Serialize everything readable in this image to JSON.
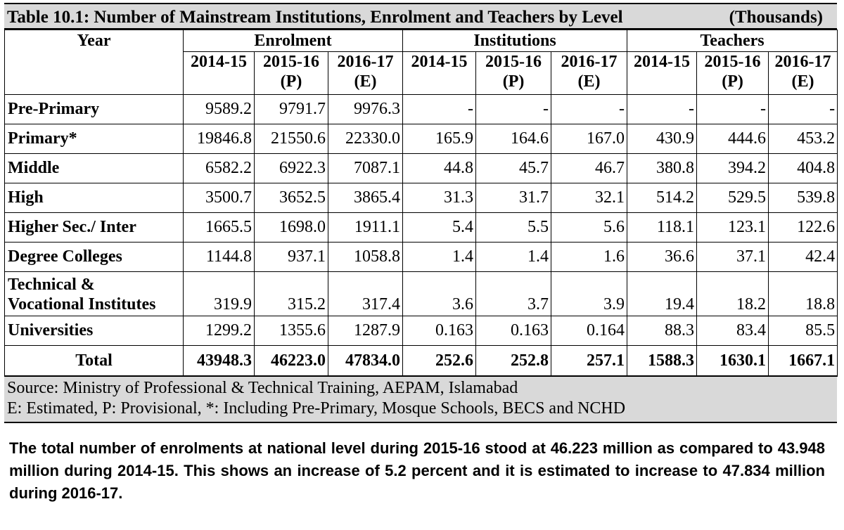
{
  "table": {
    "title": "Table 10.1: Number of Mainstream Institutions, Enrolment and Teachers by Level",
    "unit": "(Thousands)",
    "year_label": "Year",
    "groups": [
      "Enrolment",
      "Institutions",
      "Teachers"
    ],
    "subheaders": [
      {
        "line1": "2014-15",
        "line2": ""
      },
      {
        "line1": "2015-16",
        "line2": "(P)"
      },
      {
        "line1": "2016-17",
        "line2": "(E)"
      },
      {
        "line1": "2014-15",
        "line2": ""
      },
      {
        "line1": "2015-16",
        "line2": "(P)"
      },
      {
        "line1": "2016-17",
        "line2": "(E)"
      },
      {
        "line1": "2014-15",
        "line2": ""
      },
      {
        "line1": "2015-16",
        "line2": "(P)"
      },
      {
        "line1": "2016-17",
        "line2": "(E)"
      }
    ],
    "rows": [
      {
        "label": "Pre-Primary",
        "values": [
          "9589.2",
          "9791.7",
          "9976.3",
          "-",
          "-",
          "-",
          "-",
          "-",
          "-"
        ]
      },
      {
        "label": "Primary*",
        "values": [
          "19846.8",
          "21550.6",
          "22330.0",
          "165.9",
          "164.6",
          "167.0",
          "430.9",
          "444.6",
          "453.2"
        ]
      },
      {
        "label": "Middle",
        "values": [
          "6582.2",
          "6922.3",
          "7087.1",
          "44.8",
          "45.7",
          "46.7",
          "380.8",
          "394.2",
          "404.8"
        ]
      },
      {
        "label": "High",
        "values": [
          "3500.7",
          "3652.5",
          "3865.4",
          "31.3",
          "31.7",
          "32.1",
          "514.2",
          "529.5",
          "539.8"
        ]
      },
      {
        "label": "Higher Sec./ Inter",
        "values": [
          "1665.5",
          "1698.0",
          "1911.1",
          "5.4",
          "5.5",
          "5.6",
          "118.1",
          "123.1",
          "122.6"
        ]
      },
      {
        "label": "Degree Colleges",
        "values": [
          "1144.8",
          "937.1",
          "1058.8",
          "1.4",
          "1.4",
          "1.6",
          "36.6",
          "37.1",
          "42.4"
        ]
      },
      {
        "label_line1": "Technical &",
        "label_line2": "Vocational Institutes",
        "values": [
          "319.9",
          "315.2",
          "317.4",
          "3.6",
          "3.7",
          "3.9",
          "19.4",
          "18.2",
          "18.8"
        ]
      },
      {
        "label": "Universities",
        "values": [
          "1299.2",
          "1355.6",
          "1287.9",
          "0.163",
          "0.163",
          "0.164",
          "88.3",
          "83.4",
          "85.5"
        ]
      }
    ],
    "total": {
      "label": "Total",
      "values": [
        "43948.3",
        "46223.0",
        "47834.0",
        "252.6",
        "252.8",
        "257.1",
        "1588.3",
        "1630.1",
        "1667.1"
      ]
    },
    "source_line1": "Source: Ministry of Professional & Technical Training, AEPAM,  Islamabad",
    "source_line2": "E: Estimated, P: Provisional, *: Including Pre-Primary, Mosque Schools, BECS and NCHD"
  },
  "paragraph": "The total number of enrolments at national level during 2015-16 stood at 46.223 million as compared to 43.948 million during 2014-15. This shows an increase of 5.2 percent and it is estimated to increase to 47.834 million during 2016-17."
}
